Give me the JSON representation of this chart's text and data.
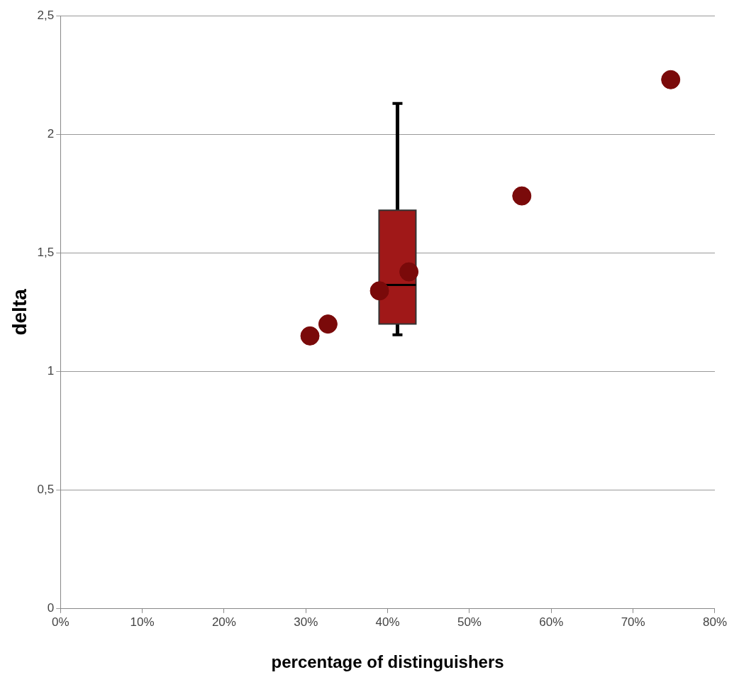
{
  "chart_data": {
    "type": "scatter",
    "xlabel": "percentage of distinguishers",
    "ylabel": "delta",
    "xlim": [
      0,
      80
    ],
    "xticks": [
      {
        "value": 0,
        "label": "0%"
      },
      {
        "value": 10,
        "label": "10%"
      },
      {
        "value": 20,
        "label": "20%"
      },
      {
        "value": 30,
        "label": "30%"
      },
      {
        "value": 40,
        "label": "40%"
      },
      {
        "value": 50,
        "label": "50%"
      },
      {
        "value": 60,
        "label": "60%"
      },
      {
        "value": 70,
        "label": "70%"
      },
      {
        "value": 80,
        "label": "80%"
      }
    ],
    "ylim": [
      0,
      2.5
    ],
    "yticks": [
      0,
      {
        "value": 0.5,
        "label": "0,5"
      },
      1,
      {
        "value": 1.5,
        "label": "1,5"
      },
      2,
      {
        "value": 2.5,
        "label": "2,5"
      }
    ],
    "grid": "y",
    "marker": "circle",
    "series": [
      {
        "type": "scatter",
        "color": "#7a0a0a",
        "x": [
          30.5,
          32.7,
          39.0,
          42.6,
          56.4,
          74.6
        ],
        "values": [
          1.15,
          1.2,
          1.34,
          1.42,
          1.74,
          2.23
        ]
      },
      {
        "type": "box",
        "color": "#a01818",
        "x": [
          41.2
        ],
        "boxes": [
          {
            "low": 1.155,
            "q1": 1.2,
            "median": 1.365,
            "q3": 1.68,
            "high": 2.13
          }
        ]
      }
    ]
  }
}
